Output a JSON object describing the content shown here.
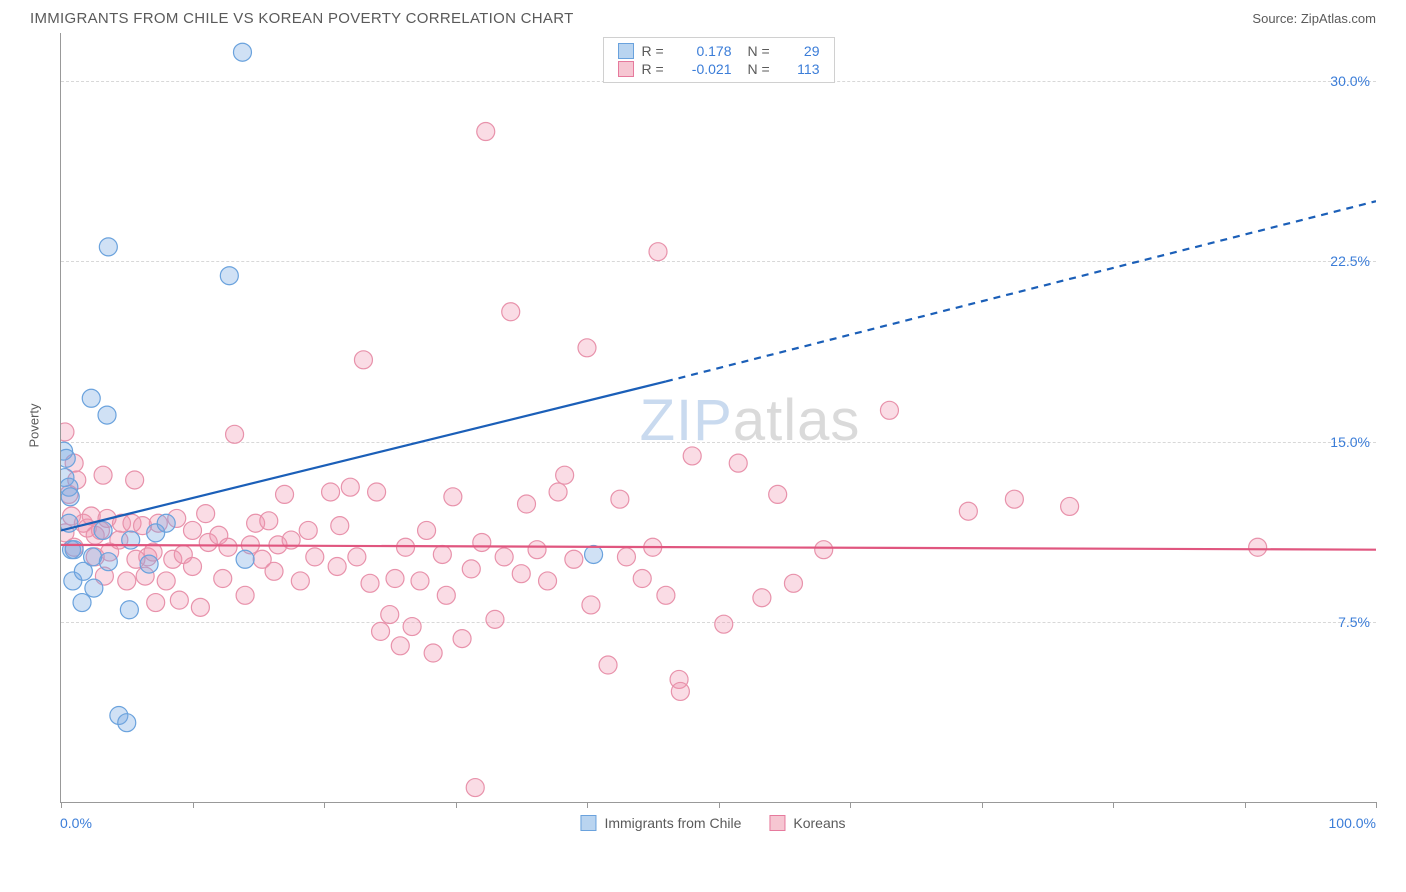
{
  "title": "IMMIGRANTS FROM CHILE VS KOREAN POVERTY CORRELATION CHART",
  "source_label": "Source:",
  "source_name": "ZipAtlas.com",
  "ylabel": "Poverty",
  "watermark_part1": "ZIP",
  "watermark_part2": "atlas",
  "chart": {
    "type": "scatter",
    "background_color": "#ffffff",
    "grid_color": "#d8d8d8",
    "axis_color": "#999999",
    "label_color": "#5a5a5a",
    "value_color": "#3b7dd8",
    "xlim": [
      0,
      100
    ],
    "ylim": [
      0,
      32
    ],
    "xaxis_left_label": "0.0%",
    "xaxis_right_label": "100.0%",
    "xtick_positions": [
      0,
      10,
      20,
      30,
      40,
      50,
      60,
      70,
      80,
      90,
      100
    ],
    "ytick_labels": [
      {
        "value": 7.5,
        "label": "7.5%"
      },
      {
        "value": 15.0,
        "label": "15.0%"
      },
      {
        "value": 22.5,
        "label": "22.5%"
      },
      {
        "value": 30.0,
        "label": "30.0%"
      }
    ],
    "marker_radius": 9,
    "marker_opacity": 0.35,
    "trendline_width": 2.2
  },
  "legend_top": {
    "r_label": "R =",
    "n_label": "N =",
    "rows": [
      {
        "swatch_fill": "#b9d4f0",
        "swatch_border": "#6aa2dd",
        "r": "0.178",
        "n": "29"
      },
      {
        "swatch_fill": "#f6c6d2",
        "swatch_border": "#e67a9d",
        "r": "-0.021",
        "n": "113"
      }
    ]
  },
  "legend_bottom": [
    {
      "swatch_fill": "#b9d4f0",
      "swatch_border": "#6aa2dd",
      "label": "Immigrants from Chile"
    },
    {
      "swatch_fill": "#f6c6d2",
      "swatch_border": "#e67a9d",
      "label": "Koreans"
    }
  ],
  "series": {
    "chile": {
      "color_fill": "rgba(120,170,225,0.35)",
      "color_stroke": "#6aa2dd",
      "trend_color": "#1b5fb8",
      "trend_start": {
        "x": 0,
        "y": 11.3
      },
      "trend_end_solid": {
        "x": 46,
        "y": 17.5
      },
      "trend_end_dashed": {
        "x": 100,
        "y": 25
      },
      "points": [
        {
          "x": 0.2,
          "y": 14.6
        },
        {
          "x": 0.3,
          "y": 13.5
        },
        {
          "x": 0.4,
          "y": 14.3
        },
        {
          "x": 0.6,
          "y": 13.1
        },
        {
          "x": 0.6,
          "y": 11.6
        },
        {
          "x": 0.7,
          "y": 12.7
        },
        {
          "x": 0.8,
          "y": 10.5
        },
        {
          "x": 0.9,
          "y": 9.2
        },
        {
          "x": 1,
          "y": 10.5
        },
        {
          "x": 1.6,
          "y": 8.3
        },
        {
          "x": 1.7,
          "y": 9.6
        },
        {
          "x": 2.3,
          "y": 16.8
        },
        {
          "x": 2.4,
          "y": 10.2
        },
        {
          "x": 2.5,
          "y": 8.9
        },
        {
          "x": 3.2,
          "y": 11.3
        },
        {
          "x": 3.5,
          "y": 16.1
        },
        {
          "x": 3.6,
          "y": 23.1
        },
        {
          "x": 3.6,
          "y": 10
        },
        {
          "x": 4.4,
          "y": 3.6
        },
        {
          "x": 5,
          "y": 3.3
        },
        {
          "x": 5.2,
          "y": 8
        },
        {
          "x": 5.3,
          "y": 10.9
        },
        {
          "x": 6.7,
          "y": 9.9
        },
        {
          "x": 7.2,
          "y": 11.2
        },
        {
          "x": 8,
          "y": 11.6
        },
        {
          "x": 12.8,
          "y": 21.9
        },
        {
          "x": 13.8,
          "y": 31.2
        },
        {
          "x": 14,
          "y": 10.1
        },
        {
          "x": 40.5,
          "y": 10.3
        }
      ]
    },
    "koreans": {
      "color_fill": "rgba(240,150,175,0.33)",
      "color_stroke": "#e892ab",
      "trend_color": "#e0567f",
      "trend_start": {
        "x": 0,
        "y": 10.7
      },
      "trend_end_solid": {
        "x": 100,
        "y": 10.5
      },
      "points": [
        {
          "x": 0.3,
          "y": 15.4
        },
        {
          "x": 0.3,
          "y": 11.2
        },
        {
          "x": 0.6,
          "y": 12.8
        },
        {
          "x": 0.8,
          "y": 11.9
        },
        {
          "x": 1,
          "y": 14.1
        },
        {
          "x": 1,
          "y": 10.6
        },
        {
          "x": 1.2,
          "y": 13.4
        },
        {
          "x": 1.7,
          "y": 11.6
        },
        {
          "x": 2,
          "y": 11.4
        },
        {
          "x": 2.3,
          "y": 11.9
        },
        {
          "x": 2.6,
          "y": 11.1
        },
        {
          "x": 2.6,
          "y": 10.2
        },
        {
          "x": 3,
          "y": 11.3
        },
        {
          "x": 3.2,
          "y": 13.6
        },
        {
          "x": 3.3,
          "y": 9.4
        },
        {
          "x": 3.5,
          "y": 11.8
        },
        {
          "x": 3.7,
          "y": 10.4
        },
        {
          "x": 4.4,
          "y": 10.9
        },
        {
          "x": 4.6,
          "y": 11.6
        },
        {
          "x": 5,
          "y": 9.2
        },
        {
          "x": 5.4,
          "y": 11.6
        },
        {
          "x": 5.6,
          "y": 13.4
        },
        {
          "x": 5.7,
          "y": 10.1
        },
        {
          "x": 6.2,
          "y": 11.5
        },
        {
          "x": 6.4,
          "y": 9.4
        },
        {
          "x": 6.6,
          "y": 10.2
        },
        {
          "x": 7,
          "y": 10.4
        },
        {
          "x": 7.2,
          "y": 8.3
        },
        {
          "x": 7.4,
          "y": 11.6
        },
        {
          "x": 8,
          "y": 9.2
        },
        {
          "x": 8.5,
          "y": 10.1
        },
        {
          "x": 8.8,
          "y": 11.8
        },
        {
          "x": 9,
          "y": 8.4
        },
        {
          "x": 9.3,
          "y": 10.3
        },
        {
          "x": 10,
          "y": 9.8
        },
        {
          "x": 10,
          "y": 11.3
        },
        {
          "x": 10.6,
          "y": 8.1
        },
        {
          "x": 11,
          "y": 12
        },
        {
          "x": 11.2,
          "y": 10.8
        },
        {
          "x": 12,
          "y": 11.1
        },
        {
          "x": 12.3,
          "y": 9.3
        },
        {
          "x": 12.7,
          "y": 10.6
        },
        {
          "x": 13.2,
          "y": 15.3
        },
        {
          "x": 14,
          "y": 8.6
        },
        {
          "x": 14.4,
          "y": 10.7
        },
        {
          "x": 14.8,
          "y": 11.6
        },
        {
          "x": 15.3,
          "y": 10.1
        },
        {
          "x": 15.8,
          "y": 11.7
        },
        {
          "x": 16.2,
          "y": 9.6
        },
        {
          "x": 16.5,
          "y": 10.7
        },
        {
          "x": 17,
          "y": 12.8
        },
        {
          "x": 17.5,
          "y": 10.9
        },
        {
          "x": 18.2,
          "y": 9.2
        },
        {
          "x": 18.8,
          "y": 11.3
        },
        {
          "x": 19.3,
          "y": 10.2
        },
        {
          "x": 20.5,
          "y": 12.9
        },
        {
          "x": 21,
          "y": 9.8
        },
        {
          "x": 21.2,
          "y": 11.5
        },
        {
          "x": 22,
          "y": 13.1
        },
        {
          "x": 22.5,
          "y": 10.2
        },
        {
          "x": 23,
          "y": 18.4
        },
        {
          "x": 23.5,
          "y": 9.1
        },
        {
          "x": 24,
          "y": 12.9
        },
        {
          "x": 24.3,
          "y": 7.1
        },
        {
          "x": 25,
          "y": 7.8
        },
        {
          "x": 25.4,
          "y": 9.3
        },
        {
          "x": 25.8,
          "y": 6.5
        },
        {
          "x": 26.2,
          "y": 10.6
        },
        {
          "x": 26.7,
          "y": 7.3
        },
        {
          "x": 27.3,
          "y": 9.2
        },
        {
          "x": 27.8,
          "y": 11.3
        },
        {
          "x": 28.3,
          "y": 6.2
        },
        {
          "x": 29,
          "y": 10.3
        },
        {
          "x": 29.3,
          "y": 8.6
        },
        {
          "x": 29.8,
          "y": 12.7
        },
        {
          "x": 30.5,
          "y": 6.8
        },
        {
          "x": 31.2,
          "y": 9.7
        },
        {
          "x": 31.5,
          "y": 0.6
        },
        {
          "x": 32,
          "y": 10.8
        },
        {
          "x": 32.3,
          "y": 27.9
        },
        {
          "x": 33,
          "y": 7.6
        },
        {
          "x": 33.7,
          "y": 10.2
        },
        {
          "x": 34.2,
          "y": 20.4
        },
        {
          "x": 35,
          "y": 9.5
        },
        {
          "x": 35.4,
          "y": 12.4
        },
        {
          "x": 36.2,
          "y": 10.5
        },
        {
          "x": 37,
          "y": 9.2
        },
        {
          "x": 37.8,
          "y": 12.9
        },
        {
          "x": 38.3,
          "y": 13.6
        },
        {
          "x": 39,
          "y": 10.1
        },
        {
          "x": 40,
          "y": 18.9
        },
        {
          "x": 40.3,
          "y": 8.2
        },
        {
          "x": 41.6,
          "y": 5.7
        },
        {
          "x": 42.5,
          "y": 12.6
        },
        {
          "x": 43,
          "y": 10.2
        },
        {
          "x": 44.2,
          "y": 9.3
        },
        {
          "x": 45,
          "y": 10.6
        },
        {
          "x": 45.4,
          "y": 22.9
        },
        {
          "x": 46,
          "y": 8.6
        },
        {
          "x": 47,
          "y": 5.1
        },
        {
          "x": 47.1,
          "y": 4.6
        },
        {
          "x": 48,
          "y": 14.4
        },
        {
          "x": 50.4,
          "y": 7.4
        },
        {
          "x": 51.5,
          "y": 14.1
        },
        {
          "x": 53.3,
          "y": 8.5
        },
        {
          "x": 54.5,
          "y": 12.8
        },
        {
          "x": 55.7,
          "y": 9.1
        },
        {
          "x": 58,
          "y": 10.5
        },
        {
          "x": 63,
          "y": 16.3
        },
        {
          "x": 69,
          "y": 12.1
        },
        {
          "x": 72.5,
          "y": 12.6
        },
        {
          "x": 76.7,
          "y": 12.3
        },
        {
          "x": 91,
          "y": 10.6
        }
      ]
    }
  }
}
